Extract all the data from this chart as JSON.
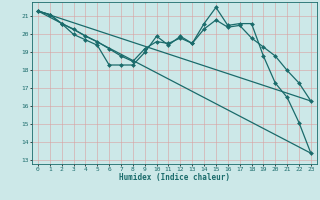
{
  "title": "",
  "xlabel": "Humidex (Indice chaleur)",
  "ylabel": "",
  "xlim": [
    -0.5,
    23.5
  ],
  "ylim": [
    12.8,
    21.8
  ],
  "yticks": [
    13,
    14,
    15,
    16,
    17,
    18,
    19,
    20,
    21
  ],
  "xticks": [
    0,
    1,
    2,
    3,
    4,
    5,
    6,
    7,
    8,
    9,
    10,
    11,
    12,
    13,
    14,
    15,
    16,
    17,
    18,
    19,
    20,
    21,
    22,
    23
  ],
  "background_color": "#cce8e8",
  "grid_color": "#aacfcf",
  "line_color": "#1a6b6b",
  "series": [
    {
      "x": [
        0,
        1,
        2,
        3,
        4,
        5,
        6,
        7,
        8,
        9,
        10,
        11,
        12,
        13,
        14,
        15,
        16,
        17,
        18,
        19,
        20,
        21,
        22,
        23
      ],
      "y": [
        21.3,
        21.1,
        20.6,
        20.0,
        19.7,
        19.4,
        18.3,
        18.3,
        18.3,
        19.0,
        19.9,
        19.4,
        19.9,
        19.5,
        20.6,
        21.5,
        20.5,
        20.6,
        20.6,
        18.8,
        17.3,
        16.5,
        15.1,
        13.4
      ],
      "marker": "D",
      "markersize": 2.0,
      "linewidth": 0.9
    },
    {
      "x": [
        0,
        1,
        2,
        3,
        4,
        5,
        6,
        7,
        8,
        9,
        10,
        11,
        12,
        13,
        14,
        15,
        16,
        17,
        18,
        19,
        20,
        21,
        22,
        23
      ],
      "y": [
        21.3,
        21.1,
        20.6,
        20.3,
        19.9,
        19.6,
        19.2,
        18.8,
        18.5,
        19.2,
        19.6,
        19.5,
        19.8,
        19.5,
        20.3,
        20.8,
        20.4,
        20.5,
        19.8,
        19.3,
        18.8,
        18.0,
        17.3,
        16.3
      ],
      "marker": "D",
      "markersize": 2.0,
      "linewidth": 0.9
    },
    {
      "x": [
        0,
        23
      ],
      "y": [
        21.3,
        13.4
      ],
      "marker": null,
      "markersize": 0,
      "linewidth": 0.9
    },
    {
      "x": [
        0,
        23
      ],
      "y": [
        21.3,
        16.3
      ],
      "marker": null,
      "markersize": 0,
      "linewidth": 0.9
    }
  ]
}
